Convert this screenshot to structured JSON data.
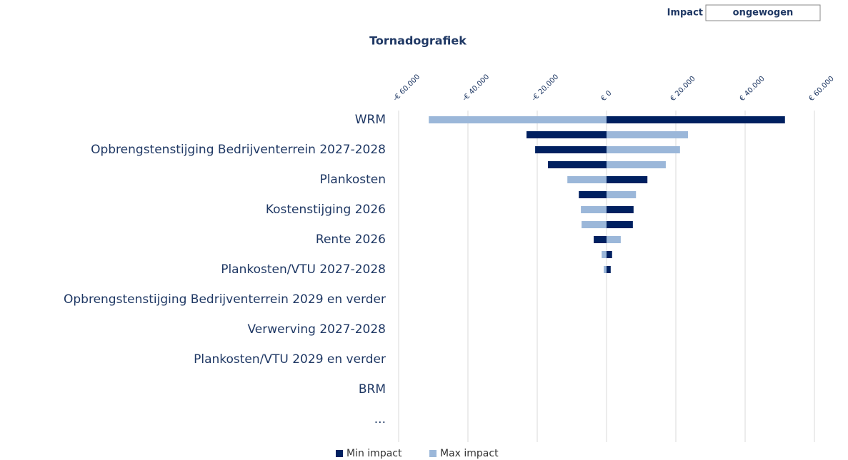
{
  "filter": {
    "label": "Impact",
    "value": "ongewogen"
  },
  "chart_data": {
    "type": "tornado",
    "title": "Tornadografiek",
    "categories": [
      "WRM",
      null,
      "Opbrengstenstijging Bedrijventerrein 2027-2028",
      null,
      "Plankosten",
      null,
      "Kostenstijging 2026",
      null,
      "Rente 2026",
      null,
      "Plankosten/VTU 2027-2028",
      null,
      "Opbrengstenstijging Bedrijventerrein 2029 en verder",
      null,
      "Verwerving 2027-2028",
      null,
      "Plankosten/VTU 2029 en verder",
      null,
      "BRM",
      null,
      "...",
      null
    ],
    "series": [
      {
        "name": "Min impact",
        "color": "#002060",
        "values": [
          51500,
          -23100,
          -20600,
          -16900,
          11800,
          -8000,
          7800,
          7600,
          -3700,
          1600,
          1200,
          null,
          null,
          null,
          null,
          null,
          null,
          null,
          null,
          null,
          null,
          null
        ]
      },
      {
        "name": "Max impact",
        "color": "#9bb7d9",
        "values": [
          -51300,
          23500,
          21200,
          17100,
          -11300,
          8500,
          -7400,
          -7200,
          4100,
          -1400,
          -800,
          null,
          null,
          null,
          null,
          null,
          null,
          null,
          null,
          null,
          null,
          null
        ]
      }
    ],
    "xlim": [
      -60000,
      60000
    ],
    "xticks": [
      {
        "value": -60000,
        "label": "-€ 60.000"
      },
      {
        "value": -40000,
        "label": "-€ 40.000"
      },
      {
        "value": -20000,
        "label": "-€ 20.000"
      },
      {
        "value": 0,
        "label": "€ 0"
      },
      {
        "value": 20000,
        "label": "€ 20.000"
      },
      {
        "value": 40000,
        "label": "€ 40.000"
      },
      {
        "value": 60000,
        "label": "€ 60.000"
      }
    ],
    "grid": true,
    "legend": "bottom"
  }
}
